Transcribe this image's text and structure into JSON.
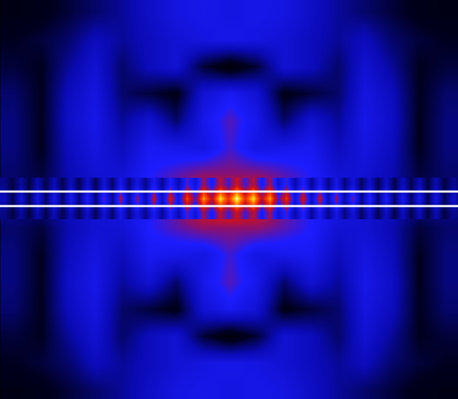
{
  "chart_data": {
    "type": "heatmap",
    "xlim": [
      0,
      662
    ],
    "ylim": [
      577,
      0
    ],
    "tick_labels": false,
    "grid": false,
    "zlim": [
      0,
      1
    ],
    "field": {
      "x": [
        20,
        59,
        98,
        137,
        176,
        215,
        254,
        293,
        332,
        371,
        410,
        449,
        488,
        527,
        566,
        605,
        644
      ],
      "y": [
        18,
        57,
        96,
        135,
        174,
        213,
        252,
        291,
        330,
        369,
        408,
        447,
        486,
        525,
        564
      ],
      "cells": [
        [
          0.08,
          0.1,
          0.15,
          0.2,
          0.25,
          0.32,
          0.38,
          0.4,
          0.38,
          0.4,
          0.38,
          0.32,
          0.25,
          0.2,
          0.15,
          0.1,
          0.08
        ],
        [
          0.12,
          0.15,
          0.2,
          0.3,
          0.25,
          0.3,
          0.35,
          0.38,
          0.4,
          0.38,
          0.35,
          0.3,
          0.25,
          0.3,
          0.2,
          0.15,
          0.12
        ],
        [
          0.15,
          0.12,
          0.25,
          0.35,
          0.2,
          0.3,
          0.35,
          0.15,
          0.05,
          0.15,
          0.35,
          0.3,
          0.2,
          0.35,
          0.25,
          0.12,
          0.15
        ],
        [
          0.2,
          0.12,
          0.3,
          0.38,
          0.2,
          0.15,
          0.1,
          0.35,
          0.42,
          0.35,
          0.1,
          0.15,
          0.2,
          0.38,
          0.3,
          0.12,
          0.2
        ],
        [
          0.22,
          0.12,
          0.32,
          0.4,
          0.25,
          0.35,
          0.2,
          0.4,
          0.5,
          0.4,
          0.2,
          0.35,
          0.25,
          0.4,
          0.32,
          0.12,
          0.22
        ],
        [
          0.22,
          0.12,
          0.3,
          0.38,
          0.3,
          0.42,
          0.4,
          0.38,
          0.48,
          0.38,
          0.4,
          0.42,
          0.3,
          0.38,
          0.3,
          0.12,
          0.22
        ],
        [
          0.2,
          0.15,
          0.28,
          0.35,
          0.35,
          0.45,
          0.5,
          0.55,
          0.55,
          0.55,
          0.5,
          0.45,
          0.35,
          0.35,
          0.28,
          0.15,
          0.2
        ],
        [
          0.25,
          0.25,
          0.3,
          0.35,
          0.4,
          0.45,
          0.55,
          0.75,
          0.85,
          0.75,
          0.55,
          0.45,
          0.4,
          0.35,
          0.3,
          0.25,
          0.25
        ],
        [
          0.2,
          0.15,
          0.28,
          0.35,
          0.35,
          0.45,
          0.5,
          0.55,
          0.55,
          0.55,
          0.5,
          0.45,
          0.35,
          0.35,
          0.28,
          0.15,
          0.2
        ],
        [
          0.22,
          0.12,
          0.3,
          0.38,
          0.3,
          0.42,
          0.4,
          0.38,
          0.48,
          0.38,
          0.4,
          0.42,
          0.3,
          0.38,
          0.3,
          0.12,
          0.22
        ],
        [
          0.22,
          0.12,
          0.32,
          0.4,
          0.25,
          0.35,
          0.2,
          0.4,
          0.5,
          0.4,
          0.2,
          0.35,
          0.25,
          0.4,
          0.32,
          0.12,
          0.22
        ],
        [
          0.2,
          0.12,
          0.3,
          0.38,
          0.2,
          0.15,
          0.1,
          0.35,
          0.42,
          0.35,
          0.1,
          0.15,
          0.2,
          0.38,
          0.3,
          0.12,
          0.2
        ],
        [
          0.15,
          0.12,
          0.25,
          0.35,
          0.2,
          0.3,
          0.35,
          0.15,
          0.05,
          0.15,
          0.35,
          0.3,
          0.2,
          0.35,
          0.25,
          0.12,
          0.15
        ],
        [
          0.12,
          0.15,
          0.2,
          0.3,
          0.25,
          0.3,
          0.35,
          0.38,
          0.4,
          0.38,
          0.35,
          0.3,
          0.25,
          0.3,
          0.2,
          0.15,
          0.12
        ],
        [
          0.08,
          0.1,
          0.15,
          0.2,
          0.25,
          0.32,
          0.38,
          0.4,
          0.38,
          0.4,
          0.38,
          0.32,
          0.25,
          0.2,
          0.15,
          0.1,
          0.08
        ]
      ]
    },
    "stripe": {
      "x": [
        6,
        18,
        30,
        42,
        54,
        66,
        78,
        90,
        102,
        114,
        126,
        138,
        150,
        162,
        174,
        186,
        198,
        210,
        222,
        234,
        246,
        258,
        270,
        282,
        294,
        306,
        318,
        330,
        342,
        354,
        366,
        378,
        390,
        402,
        414,
        426,
        438,
        450,
        462,
        474,
        486,
        498,
        510,
        522,
        534,
        546,
        558,
        570,
        582,
        594,
        606,
        618,
        630,
        642,
        654
      ],
      "y": [
        267,
        287,
        307
      ],
      "cells": [
        [
          0.23,
          0.16,
          0.26,
          0.16,
          0.28,
          0.17,
          0.29,
          0.17,
          0.3,
          0.18,
          0.32,
          0.18,
          0.35,
          0.2,
          0.4,
          0.22,
          0.38,
          0.23,
          0.42,
          0.24,
          0.45,
          0.28,
          0.5,
          0.35,
          0.57,
          0.42,
          0.61,
          0.48,
          0.64,
          0.48,
          0.61,
          0.42,
          0.57,
          0.35,
          0.48,
          0.27,
          0.45,
          0.24,
          0.42,
          0.23,
          0.39,
          0.22,
          0.36,
          0.19,
          0.33,
          0.18,
          0.31,
          0.17,
          0.3,
          0.17,
          0.29,
          0.16,
          0.28,
          0.16,
          0.24
        ],
        [
          0.3,
          0.18,
          0.35,
          0.18,
          0.38,
          0.2,
          0.4,
          0.2,
          0.42,
          0.22,
          0.45,
          0.22,
          0.5,
          0.25,
          0.58,
          0.28,
          0.55,
          0.3,
          0.62,
          0.32,
          0.66,
          0.38,
          0.75,
          0.5,
          0.86,
          0.62,
          0.93,
          0.72,
          0.98,
          0.72,
          0.93,
          0.62,
          0.86,
          0.5,
          0.72,
          0.36,
          0.66,
          0.32,
          0.62,
          0.3,
          0.56,
          0.28,
          0.52,
          0.24,
          0.46,
          0.22,
          0.44,
          0.2,
          0.42,
          0.2,
          0.4,
          0.18,
          0.38,
          0.18,
          0.32
        ],
        [
          0.23,
          0.16,
          0.26,
          0.16,
          0.28,
          0.17,
          0.29,
          0.17,
          0.3,
          0.18,
          0.32,
          0.18,
          0.35,
          0.2,
          0.4,
          0.22,
          0.38,
          0.23,
          0.42,
          0.24,
          0.45,
          0.28,
          0.5,
          0.35,
          0.57,
          0.42,
          0.61,
          0.48,
          0.64,
          0.48,
          0.61,
          0.42,
          0.57,
          0.35,
          0.48,
          0.27,
          0.45,
          0.24,
          0.42,
          0.23,
          0.39,
          0.22,
          0.36,
          0.19,
          0.33,
          0.18,
          0.31,
          0.17,
          0.3,
          0.17,
          0.29,
          0.16,
          0.28,
          0.16,
          0.24
        ]
      ]
    },
    "lines": [
      277,
      298
    ]
  }
}
